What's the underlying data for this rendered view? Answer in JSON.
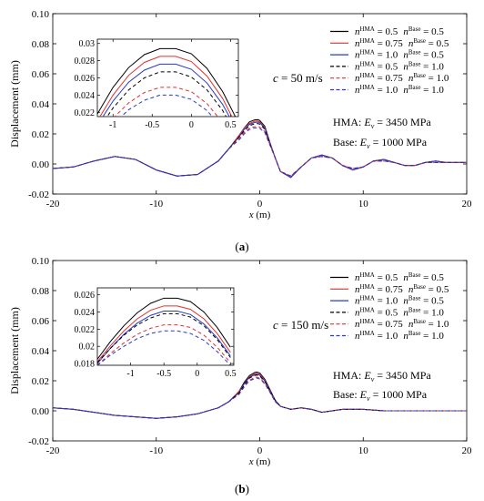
{
  "chart_data": [
    {
      "type": "line",
      "panel_label": "(a)",
      "xlabel": "x (m)",
      "ylabel": "Displacement (mm)",
      "xlim": [
        -20,
        20
      ],
      "ylim": [
        -0.02,
        0.1
      ],
      "xticks": [
        "-20",
        "-10",
        "0",
        "10",
        "20"
      ],
      "yticks": [
        "-0.02",
        "0.00",
        "0.02",
        "0.04",
        "0.06",
        "0.08",
        "0.10"
      ],
      "x": [
        -20,
        -18,
        -16,
        -14,
        -12,
        -10,
        -8,
        -6,
        -4,
        -3,
        -2,
        -1.5,
        -1,
        -0.5,
        -0.2,
        0,
        0.5,
        1,
        1.5,
        2,
        3,
        4,
        5,
        6,
        7,
        8,
        9,
        10,
        11,
        12,
        13,
        14,
        15,
        16,
        17,
        18,
        19,
        20
      ],
      "annotations": {
        "speed": "c = 50 m/s",
        "hma": "HMA: E_v = 3450 MPa",
        "base": "Base: E_v = 1000 MPa"
      },
      "series": [
        {
          "name": "n^HMA = 0.5  n^Base = 0.5",
          "color": "#000000",
          "dash": "solid",
          "values": [
            -0.003,
            -0.002,
            0.002,
            0.005,
            0.003,
            -0.004,
            -0.008,
            -0.007,
            0.002,
            0.01,
            0.019,
            0.024,
            0.028,
            0.0293,
            0.0295,
            0.029,
            0.025,
            0.014,
            0.004,
            -0.005,
            -0.009,
            -0.002,
            0.004,
            0.006,
            0.004,
            -0.001,
            -0.004,
            -0.002,
            0.002,
            0.003,
            0.001,
            -0.001,
            -0.001,
            0.001,
            0.002,
            0.001,
            0.001,
            0.001
          ]
        },
        {
          "name": "n^HMA = 0.75  n^Base = 0.5",
          "color": "#e03030",
          "dash": "solid",
          "values": [
            -0.003,
            -0.002,
            0.002,
            0.005,
            0.003,
            -0.004,
            -0.008,
            -0.007,
            0.002,
            0.01,
            0.019,
            0.024,
            0.027,
            0.0284,
            0.0286,
            0.0281,
            0.0243,
            0.0135,
            0.004,
            -0.005,
            -0.009,
            -0.002,
            0.004,
            0.006,
            0.004,
            -0.001,
            -0.004,
            -0.002,
            0.002,
            0.003,
            0.001,
            -0.001,
            -0.001,
            0.001,
            0.002,
            0.001,
            0.001,
            0.001
          ]
        },
        {
          "name": "n^HMA = 1.0  n^Base = 0.5",
          "color": "#2838c8",
          "dash": "solid",
          "values": [
            -0.003,
            -0.002,
            0.002,
            0.005,
            0.003,
            -0.004,
            -0.008,
            -0.007,
            0.002,
            0.01,
            0.018,
            0.023,
            0.0263,
            0.0276,
            0.0279,
            0.0274,
            0.0237,
            0.0132,
            0.004,
            -0.005,
            -0.009,
            -0.002,
            0.004,
            0.006,
            0.004,
            -0.001,
            -0.004,
            -0.002,
            0.002,
            0.003,
            0.001,
            -0.001,
            -0.001,
            0.001,
            0.002,
            0.001,
            0.001,
            0.001
          ]
        },
        {
          "name": "n^HMA = 0.5  n^Base = 1.0",
          "color": "#000000",
          "dash": "dashed",
          "values": [
            -0.003,
            -0.002,
            0.002,
            0.005,
            0.003,
            -0.004,
            -0.008,
            -0.007,
            0.002,
            0.01,
            0.018,
            0.022,
            0.0255,
            0.0267,
            0.0269,
            0.0265,
            0.023,
            0.013,
            0.004,
            -0.005,
            -0.008,
            -0.002,
            0.004,
            0.005,
            0.004,
            -0.001,
            -0.003,
            -0.002,
            0.002,
            0.002,
            0.001,
            -0.001,
            -0.001,
            0.001,
            0.001,
            0.001,
            0.001,
            0.001
          ]
        },
        {
          "name": "n^HMA = 0.75  n^Base = 1.0",
          "color": "#e03030",
          "dash": "dashed",
          "values": [
            -0.003,
            -0.002,
            0.002,
            0.005,
            0.003,
            -0.004,
            -0.008,
            -0.007,
            0.002,
            0.01,
            0.017,
            0.021,
            0.0238,
            0.0248,
            0.025,
            0.0246,
            0.0215,
            0.0125,
            0.004,
            -0.005,
            -0.008,
            -0.002,
            0.004,
            0.005,
            0.004,
            -0.001,
            -0.003,
            -0.002,
            0.002,
            0.002,
            0.001,
            -0.001,
            -0.001,
            0.001,
            0.001,
            0.001,
            0.001,
            0.001
          ]
        },
        {
          "name": "n^HMA = 1.0  n^Base = 1.0",
          "color": "#2838c8",
          "dash": "dashed",
          "values": [
            -0.003,
            -0.002,
            0.002,
            0.005,
            0.003,
            -0.004,
            -0.008,
            -0.007,
            0.002,
            0.01,
            0.016,
            0.02,
            0.023,
            0.0239,
            0.0241,
            0.0237,
            0.0208,
            0.0122,
            0.004,
            -0.005,
            -0.008,
            -0.002,
            0.004,
            0.005,
            0.004,
            -0.001,
            -0.003,
            -0.002,
            0.002,
            0.002,
            0.001,
            -0.001,
            -0.001,
            0.001,
            0.001,
            0.001,
            0.001,
            0.001
          ]
        }
      ],
      "inset": {
        "xlim": [
          -1.2,
          0.6
        ],
        "ylim": [
          0.0215,
          0.0305
        ],
        "xticks": [
          "-1",
          "-0.5",
          "0",
          "0.5"
        ],
        "yticks": [
          "0.022",
          "0.024",
          "0.026",
          "0.028",
          "0.03"
        ],
        "x": [
          -1.2,
          -1,
          -0.8,
          -0.6,
          -0.4,
          -0.2,
          0,
          0.2,
          0.4,
          0.6
        ],
        "series_values": [
          [
            0.0218,
            0.0249,
            0.0272,
            0.0287,
            0.0294,
            0.0294,
            0.0288,
            0.0271,
            0.0244,
            0.0208
          ],
          [
            0.021,
            0.024,
            0.0263,
            0.0278,
            0.0285,
            0.0285,
            0.0279,
            0.0262,
            0.0236,
            0.02
          ],
          [
            0.0205,
            0.0233,
            0.0255,
            0.0269,
            0.0276,
            0.0276,
            0.027,
            0.0254,
            0.0229,
            0.0196
          ],
          [
            0.0198,
            0.0225,
            0.0246,
            0.026,
            0.0267,
            0.0267,
            0.0261,
            0.0246,
            0.0222,
            0.019
          ],
          [
            0.019,
            0.0213,
            0.0231,
            0.0243,
            0.0249,
            0.0249,
            0.0244,
            0.023,
            0.0208,
            0.018
          ],
          [
            0.0185,
            0.0206,
            0.0223,
            0.0234,
            0.024,
            0.024,
            0.0235,
            0.0222,
            0.0201,
            0.0175
          ]
        ]
      }
    },
    {
      "type": "line",
      "panel_label": "(b)",
      "xlabel": "x (m)",
      "ylabel": "Displacement (mm)",
      "xlim": [
        -20,
        20
      ],
      "ylim": [
        -0.02,
        0.1
      ],
      "xticks": [
        "-20",
        "-10",
        "0",
        "10",
        "20"
      ],
      "yticks": [
        "-0.02",
        "0.00",
        "0.02",
        "0.04",
        "0.06",
        "0.08",
        "0.10"
      ],
      "x": [
        -20,
        -18,
        -16,
        -14,
        -12,
        -10,
        -8,
        -6,
        -4,
        -3,
        -2,
        -1.5,
        -1,
        -0.5,
        -0.3,
        0,
        0.5,
        1,
        1.5,
        2,
        3,
        4,
        5,
        6,
        7,
        8,
        10,
        12,
        14,
        16,
        18,
        20
      ],
      "annotations": {
        "speed": "c = 150 m/s",
        "hma": "HMA: E_v = 3450 MPa",
        "base": "Base: E_v = 1000 MPa"
      },
      "series": [
        {
          "name": "n^HMA = 0.5  n^Base = 0.5",
          "color": "#000000",
          "dash": "solid",
          "values": [
            0.002,
            0.001,
            -0.001,
            -0.003,
            -0.004,
            -0.005,
            -0.004,
            -0.002,
            0.002,
            0.006,
            0.013,
            0.019,
            0.0235,
            0.0255,
            0.0258,
            0.0252,
            0.021,
            0.014,
            0.007,
            0.003,
            0.001,
            0.002,
            0.001,
            -0.001,
            0,
            0.001,
            0.001,
            0,
            0,
            0,
            0,
            0
          ]
        },
        {
          "name": "n^HMA = 0.75  n^Base = 0.5",
          "color": "#e03030",
          "dash": "solid",
          "values": [
            0.002,
            0.001,
            -0.001,
            -0.003,
            -0.004,
            -0.005,
            -0.004,
            -0.002,
            0.002,
            0.006,
            0.013,
            0.018,
            0.0228,
            0.0247,
            0.025,
            0.0244,
            0.0203,
            0.0135,
            0.007,
            0.003,
            0.001,
            0.002,
            0.001,
            -0.001,
            0,
            0.001,
            0.001,
            0,
            0,
            0,
            0,
            0
          ]
        },
        {
          "name": "n^HMA = 1.0  n^Base = 0.5",
          "color": "#2838c8",
          "dash": "solid",
          "values": [
            0.002,
            0.001,
            -0.001,
            -0.003,
            -0.004,
            -0.005,
            -0.004,
            -0.002,
            0.002,
            0.006,
            0.012,
            0.018,
            0.0222,
            0.024,
            0.0243,
            0.0237,
            0.0198,
            0.0132,
            0.007,
            0.003,
            0.001,
            0.002,
            0.001,
            -0.001,
            0,
            0.001,
            0.001,
            0,
            0,
            0,
            0,
            0
          ]
        },
        {
          "name": "n^HMA = 0.5  n^Base = 1.0",
          "color": "#000000",
          "dash": "dashed",
          "values": [
            0.002,
            0.001,
            -0.001,
            -0.003,
            -0.004,
            -0.005,
            -0.004,
            -0.002,
            0.002,
            0.006,
            0.012,
            0.017,
            0.0218,
            0.0235,
            0.0238,
            0.0232,
            0.0194,
            0.013,
            0.007,
            0.003,
            0.001,
            0.002,
            0.001,
            -0.001,
            0,
            0.001,
            0.001,
            0,
            0,
            0,
            0,
            0
          ]
        },
        {
          "name": "n^HMA = 0.75  n^Base = 1.0",
          "color": "#e03030",
          "dash": "dashed",
          "values": [
            0.002,
            0.001,
            -0.001,
            -0.003,
            -0.004,
            -0.005,
            -0.004,
            -0.002,
            0.002,
            0.006,
            0.011,
            0.016,
            0.0205,
            0.0221,
            0.0224,
            0.0219,
            0.0184,
            0.0124,
            0.006,
            0.003,
            0.001,
            0.002,
            0.001,
            -0.001,
            0,
            0.001,
            0.001,
            0,
            0,
            0,
            0,
            0
          ]
        },
        {
          "name": "n^HMA = 1.0  n^Base = 1.0",
          "color": "#2838c8",
          "dash": "dashed",
          "values": [
            0.002,
            0.001,
            -0.001,
            -0.003,
            -0.004,
            -0.005,
            -0.004,
            -0.002,
            0.002,
            0.006,
            0.011,
            0.016,
            0.0199,
            0.0214,
            0.0217,
            0.0212,
            0.0179,
            0.0121,
            0.006,
            0.003,
            0.001,
            0.002,
            0.001,
            -0.001,
            0,
            0.001,
            0.001,
            0,
            0,
            0,
            0,
            0
          ]
        }
      ],
      "inset": {
        "xlim": [
          -1.5,
          0.55
        ],
        "ylim": [
          0.0178,
          0.0268
        ],
        "xticks": [
          "-1",
          "-0.5",
          "0",
          "0.5"
        ],
        "yticks": [
          "0.018",
          "0.02",
          "0.022",
          "0.024",
          "0.026"
        ],
        "x": [
          -1.5,
          -1.3,
          -1.1,
          -0.9,
          -0.7,
          -0.5,
          -0.3,
          -0.1,
          0.1,
          0.3,
          0.5
        ],
        "series_values": [
          [
            0.0185,
            0.0206,
            0.0224,
            0.0239,
            0.025,
            0.0256,
            0.0256,
            0.0252,
            0.024,
            0.0222,
            0.0199
          ],
          [
            0.0182,
            0.0201,
            0.0218,
            0.0232,
            0.0242,
            0.0247,
            0.0247,
            0.0243,
            0.0232,
            0.0215,
            0.0193
          ],
          [
            0.018,
            0.0198,
            0.0214,
            0.0227,
            0.0236,
            0.0241,
            0.0241,
            0.0237,
            0.0226,
            0.021,
            0.0189
          ],
          [
            0.0181,
            0.0198,
            0.0213,
            0.0225,
            0.0233,
            0.0238,
            0.0238,
            0.0234,
            0.0224,
            0.0208,
            0.0187
          ],
          [
            0.0178,
            0.0192,
            0.0204,
            0.0214,
            0.0221,
            0.0225,
            0.0225,
            0.0222,
            0.0213,
            0.0199,
            0.0181
          ],
          [
            0.0178,
            0.019,
            0.02,
            0.0209,
            0.0215,
            0.0218,
            0.0218,
            0.0215,
            0.0207,
            0.0194,
            0.0178
          ]
        ]
      }
    }
  ]
}
